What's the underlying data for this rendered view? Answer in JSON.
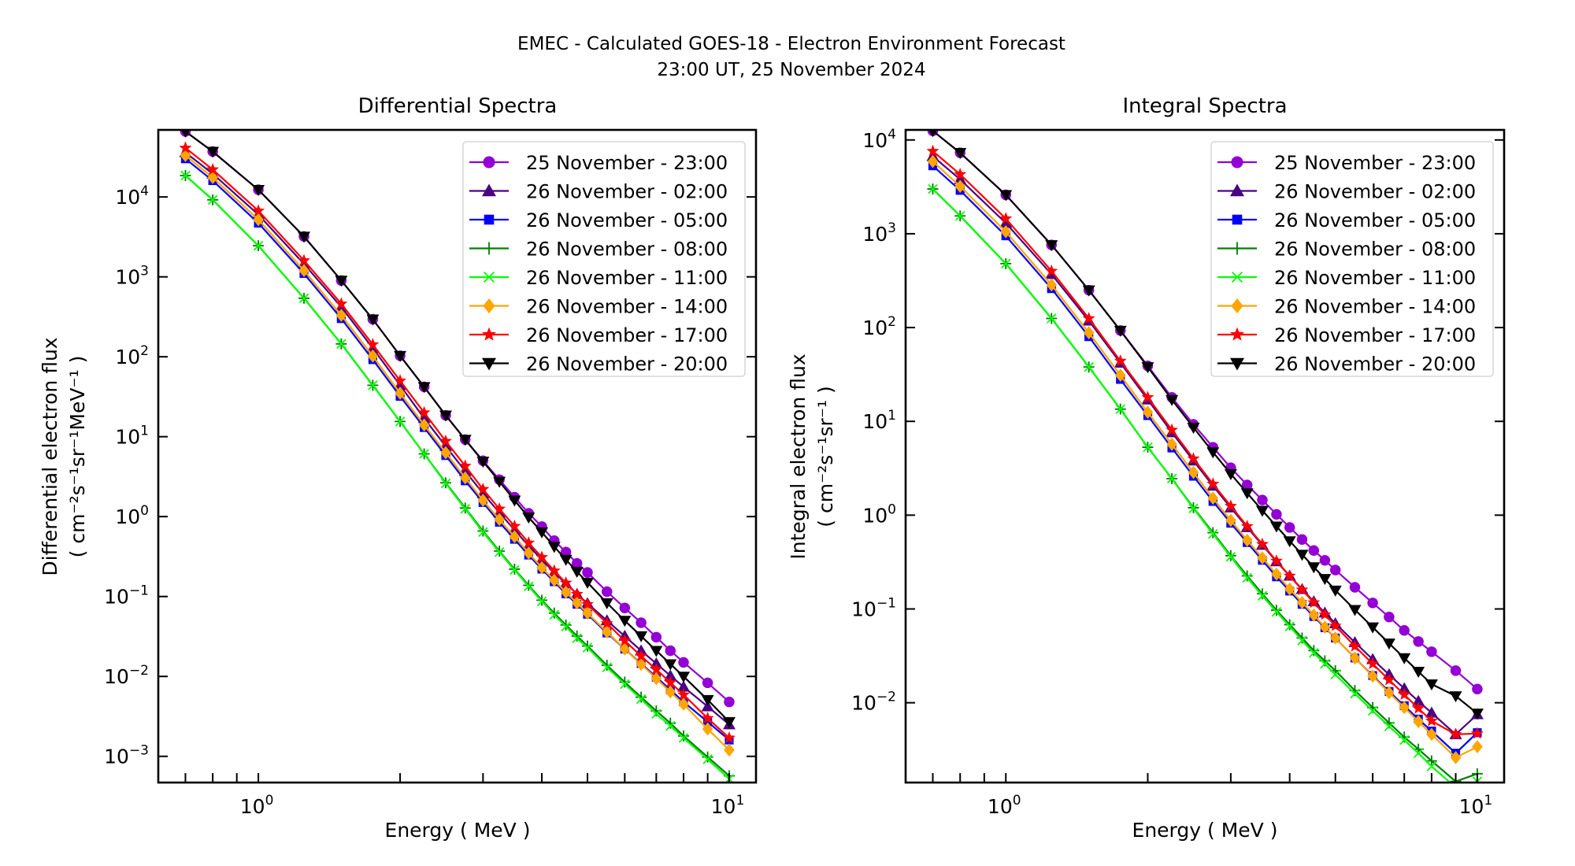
{
  "figure": {
    "title_line1": "EMEC - Calculated GOES-18 - Electron Environment Forecast",
    "title_line2": "23:00 UT, 25 November 2024"
  },
  "chart_data": [
    {
      "type": "line",
      "title": "Differential Spectra",
      "xlabel": "Energy ( MeV )",
      "ylabel_line1": "Differential electron flux",
      "ylabel_line2": "( cm⁻²s⁻¹sr⁻¹MeV⁻¹ )",
      "xscale": "log",
      "yscale": "log",
      "xlim": [
        0.613,
        11.4
      ],
      "ylim": [
        0.00047,
        69000
      ],
      "xticks": [
        {
          "value": 1,
          "label_base": "10",
          "label_exp": "0"
        },
        {
          "value": 10,
          "label_base": "10",
          "label_exp": "1"
        }
      ],
      "yticks": [
        {
          "value": 0.001,
          "label_base": "10",
          "label_exp": "−3"
        },
        {
          "value": 0.01,
          "label_base": "10",
          "label_exp": "−2"
        },
        {
          "value": 0.1,
          "label_base": "10",
          "label_exp": "−1"
        },
        {
          "value": 1,
          "label_base": "10",
          "label_exp": "0"
        },
        {
          "value": 10,
          "label_base": "10",
          "label_exp": "1"
        },
        {
          "value": 100,
          "label_base": "10",
          "label_exp": "2"
        },
        {
          "value": 1000,
          "label_base": "10",
          "label_exp": "3"
        },
        {
          "value": 10000,
          "label_base": "10",
          "label_exp": "4"
        }
      ],
      "grid": false,
      "legend_position": "top-right",
      "x": [
        0.7,
        0.8,
        1.0,
        1.25,
        1.5,
        1.75,
        2.0,
        2.25,
        2.5,
        2.75,
        3.0,
        3.25,
        3.5,
        3.75,
        4.0,
        4.25,
        4.5,
        4.75,
        5.0,
        5.5,
        6.0,
        6.5,
        7.0,
        7.5,
        8.0,
        9.0,
        10.0
      ],
      "series": [
        {
          "name": "25 November - 23:00",
          "color": "#9400d3",
          "marker": "circle",
          "values": [
            66000,
            37000,
            12300,
            3200,
            900,
            295,
            103,
            42,
            18.5,
            9.2,
            5.0,
            2.9,
            1.75,
            1.1,
            0.75,
            0.5,
            0.36,
            0.26,
            0.2,
            0.115,
            0.072,
            0.047,
            0.031,
            0.021,
            0.015,
            0.0083,
            0.0048
          ]
        },
        {
          "name": "26 November - 02:00",
          "color": "#4b0082",
          "marker": "triangle-up",
          "values": [
            36000,
            19500,
            6000,
            1450,
            420,
            128,
            44,
            17,
            7.6,
            3.7,
            1.95,
            1.12,
            0.68,
            0.43,
            0.29,
            0.2,
            0.145,
            0.107,
            0.082,
            0.05,
            0.032,
            0.021,
            0.0145,
            0.0102,
            0.0074,
            0.0042,
            0.0025
          ]
        },
        {
          "name": "26 November - 05:00",
          "color": "#0000ff",
          "marker": "square",
          "values": [
            30000,
            16000,
            4700,
            1100,
            300,
            92,
            32,
            13,
            5.8,
            2.8,
            1.5,
            0.85,
            0.52,
            0.33,
            0.22,
            0.153,
            0.108,
            0.08,
            0.06,
            0.035,
            0.022,
            0.0145,
            0.0098,
            0.0068,
            0.0048,
            0.0027,
            0.0016
          ]
        },
        {
          "name": "26 November - 08:00",
          "color": "#008000",
          "marker": "plus",
          "values": [
            18500,
            9200,
            2450,
            540,
            145,
            44,
            15.5,
            6.1,
            2.65,
            1.28,
            0.66,
            0.37,
            0.22,
            0.138,
            0.09,
            0.062,
            0.044,
            0.032,
            0.024,
            0.0138,
            0.0085,
            0.0055,
            0.0037,
            0.0026,
            0.0018,
            0.00098,
            0.00057
          ]
        },
        {
          "name": "26 November - 11:00",
          "color": "#00ff00",
          "marker": "x",
          "values": [
            18500,
            9200,
            2450,
            540,
            145,
            44,
            15.5,
            6.1,
            2.6,
            1.25,
            0.64,
            0.36,
            0.215,
            0.134,
            0.087,
            0.059,
            0.042,
            0.03,
            0.023,
            0.013,
            0.008,
            0.0052,
            0.0034,
            0.0024,
            0.0017,
            0.00092,
            0.00052
          ]
        },
        {
          "name": "26 November - 14:00",
          "color": "#ffa500",
          "marker": "diamond",
          "values": [
            33000,
            17500,
            5200,
            1200,
            330,
            102,
            35,
            14,
            6.3,
            3.05,
            1.6,
            0.92,
            0.56,
            0.35,
            0.23,
            0.16,
            0.113,
            0.083,
            0.062,
            0.036,
            0.022,
            0.0142,
            0.0094,
            0.0064,
            0.0045,
            0.0022,
            0.0012
          ]
        },
        {
          "name": "26 November - 17:00",
          "color": "#ff0000",
          "marker": "star",
          "values": [
            41000,
            22000,
            6700,
            1600,
            460,
            142,
            50,
            20,
            8.8,
            4.3,
            2.2,
            1.25,
            0.76,
            0.47,
            0.31,
            0.21,
            0.148,
            0.107,
            0.08,
            0.046,
            0.028,
            0.018,
            0.0122,
            0.0084,
            0.0059,
            0.003,
            0.0017
          ]
        },
        {
          "name": "26 November - 20:00",
          "color": "#000000",
          "marker": "triangle-down",
          "values": [
            66000,
            37000,
            12300,
            3200,
            900,
            295,
            103,
            42,
            18.5,
            9.2,
            4.9,
            2.75,
            1.6,
            0.98,
            0.64,
            0.42,
            0.29,
            0.205,
            0.15,
            0.083,
            0.05,
            0.032,
            0.021,
            0.0143,
            0.01,
            0.0051,
            0.0027
          ]
        }
      ]
    },
    {
      "type": "line",
      "title": "Integral Spectra",
      "xlabel": "Energy ( MeV )",
      "ylabel_line1": "Integral electron flux",
      "ylabel_line2": "( cm⁻²s⁻¹sr⁻¹ )",
      "xscale": "log",
      "yscale": "log",
      "xlim": [
        0.613,
        11.4
      ],
      "ylim": [
        0.00141,
        12800
      ],
      "xticks": [
        {
          "value": 1,
          "label_base": "10",
          "label_exp": "0"
        },
        {
          "value": 10,
          "label_base": "10",
          "label_exp": "1"
        }
      ],
      "yticks": [
        {
          "value": 0.01,
          "label_base": "10",
          "label_exp": "−2"
        },
        {
          "value": 0.1,
          "label_base": "10",
          "label_exp": "−1"
        },
        {
          "value": 1,
          "label_base": "10",
          "label_exp": "0"
        },
        {
          "value": 10,
          "label_base": "10",
          "label_exp": "1"
        },
        {
          "value": 100,
          "label_base": "10",
          "label_exp": "2"
        },
        {
          "value": 1000,
          "label_base": "10",
          "label_exp": "3"
        },
        {
          "value": 10000,
          "label_base": "10",
          "label_exp": "4"
        }
      ],
      "grid": false,
      "legend_position": "top-right",
      "x": [
        0.7,
        0.8,
        1.0,
        1.25,
        1.5,
        1.75,
        2.0,
        2.25,
        2.5,
        2.75,
        3.0,
        3.25,
        3.5,
        3.75,
        4.0,
        4.25,
        4.5,
        4.75,
        5.0,
        5.5,
        6.0,
        6.5,
        7.0,
        7.5,
        8.0,
        9.0,
        10.0
      ],
      "series": [
        {
          "name": "25 November - 23:00",
          "color": "#9400d3",
          "marker": "circle",
          "values": [
            12500,
            7300,
            2600,
            760,
            250,
            93,
            39,
            18,
            9.3,
            5.3,
            3.2,
            2.1,
            1.45,
            1.02,
            0.74,
            0.55,
            0.42,
            0.33,
            0.26,
            0.17,
            0.116,
            0.082,
            0.059,
            0.045,
            0.035,
            0.022,
            0.014
          ]
        },
        {
          "name": "26 November - 02:00",
          "color": "#4b0082",
          "marker": "triangle-up",
          "values": [
            6700,
            3800,
            1300,
            370,
            118,
            42,
            17,
            7.6,
            3.8,
            2.05,
            1.2,
            0.74,
            0.48,
            0.32,
            0.225,
            0.162,
            0.12,
            0.091,
            0.07,
            0.044,
            0.029,
            0.02,
            0.0142,
            0.0104,
            0.0078,
            0.0046,
            0.0075
          ]
        },
        {
          "name": "26 November - 05:00",
          "color": "#0000ff",
          "marker": "square",
          "values": [
            5300,
            2900,
            950,
            260,
            80,
            28,
            11.5,
            5.2,
            2.6,
            1.4,
            0.82,
            0.51,
            0.33,
            0.22,
            0.155,
            0.112,
            0.083,
            0.063,
            0.049,
            0.03,
            0.0195,
            0.0132,
            0.0093,
            0.0067,
            0.005,
            0.0029,
            0.0048
          ]
        },
        {
          "name": "26 November - 08:00",
          "color": "#008000",
          "marker": "plus",
          "values": [
            3000,
            1550,
            480,
            125,
            38,
            13.5,
            5.3,
            2.45,
            1.2,
            0.65,
            0.37,
            0.225,
            0.145,
            0.097,
            0.068,
            0.049,
            0.036,
            0.028,
            0.022,
            0.0135,
            0.0089,
            0.0061,
            0.0043,
            0.0032,
            0.0024,
            0.00145,
            0.00175
          ]
        },
        {
          "name": "26 November - 11:00",
          "color": "#00ff00",
          "marker": "x",
          "values": [
            3000,
            1550,
            480,
            125,
            38,
            13.5,
            5.3,
            2.45,
            1.18,
            0.63,
            0.36,
            0.215,
            0.138,
            0.093,
            0.065,
            0.046,
            0.034,
            0.026,
            0.02,
            0.0125,
            0.0082,
            0.0056,
            0.004,
            0.0029,
            0.0021,
            0.00125,
            0.00145
          ]
        },
        {
          "name": "26 November - 14:00",
          "color": "#ffa500",
          "marker": "diamond",
          "values": [
            5900,
            3200,
            1050,
            285,
            88,
            31,
            12.5,
            5.7,
            2.85,
            1.52,
            0.88,
            0.54,
            0.35,
            0.235,
            0.163,
            0.117,
            0.086,
            0.064,
            0.049,
            0.03,
            0.0192,
            0.0128,
            0.0089,
            0.0063,
            0.0046,
            0.0026,
            0.0034
          ]
        },
        {
          "name": "26 November - 17:00",
          "color": "#ff0000",
          "marker": "star",
          "values": [
            7600,
            4300,
            1450,
            400,
            125,
            44,
            18,
            8.1,
            4.0,
            2.15,
            1.25,
            0.76,
            0.49,
            0.325,
            0.225,
            0.16,
            0.117,
            0.087,
            0.066,
            0.04,
            0.026,
            0.0175,
            0.0122,
            0.0087,
            0.0064,
            0.0046,
            0.0047
          ]
        },
        {
          "name": "26 November - 20:00",
          "color": "#000000",
          "marker": "triangle-down",
          "values": [
            12500,
            7300,
            2600,
            760,
            250,
            93,
            38,
            17,
            8.6,
            4.7,
            2.75,
            1.72,
            1.12,
            0.76,
            0.53,
            0.38,
            0.28,
            0.21,
            0.158,
            0.098,
            0.064,
            0.043,
            0.03,
            0.0215,
            0.0158,
            0.0118,
            0.0077
          ]
        }
      ]
    }
  ]
}
